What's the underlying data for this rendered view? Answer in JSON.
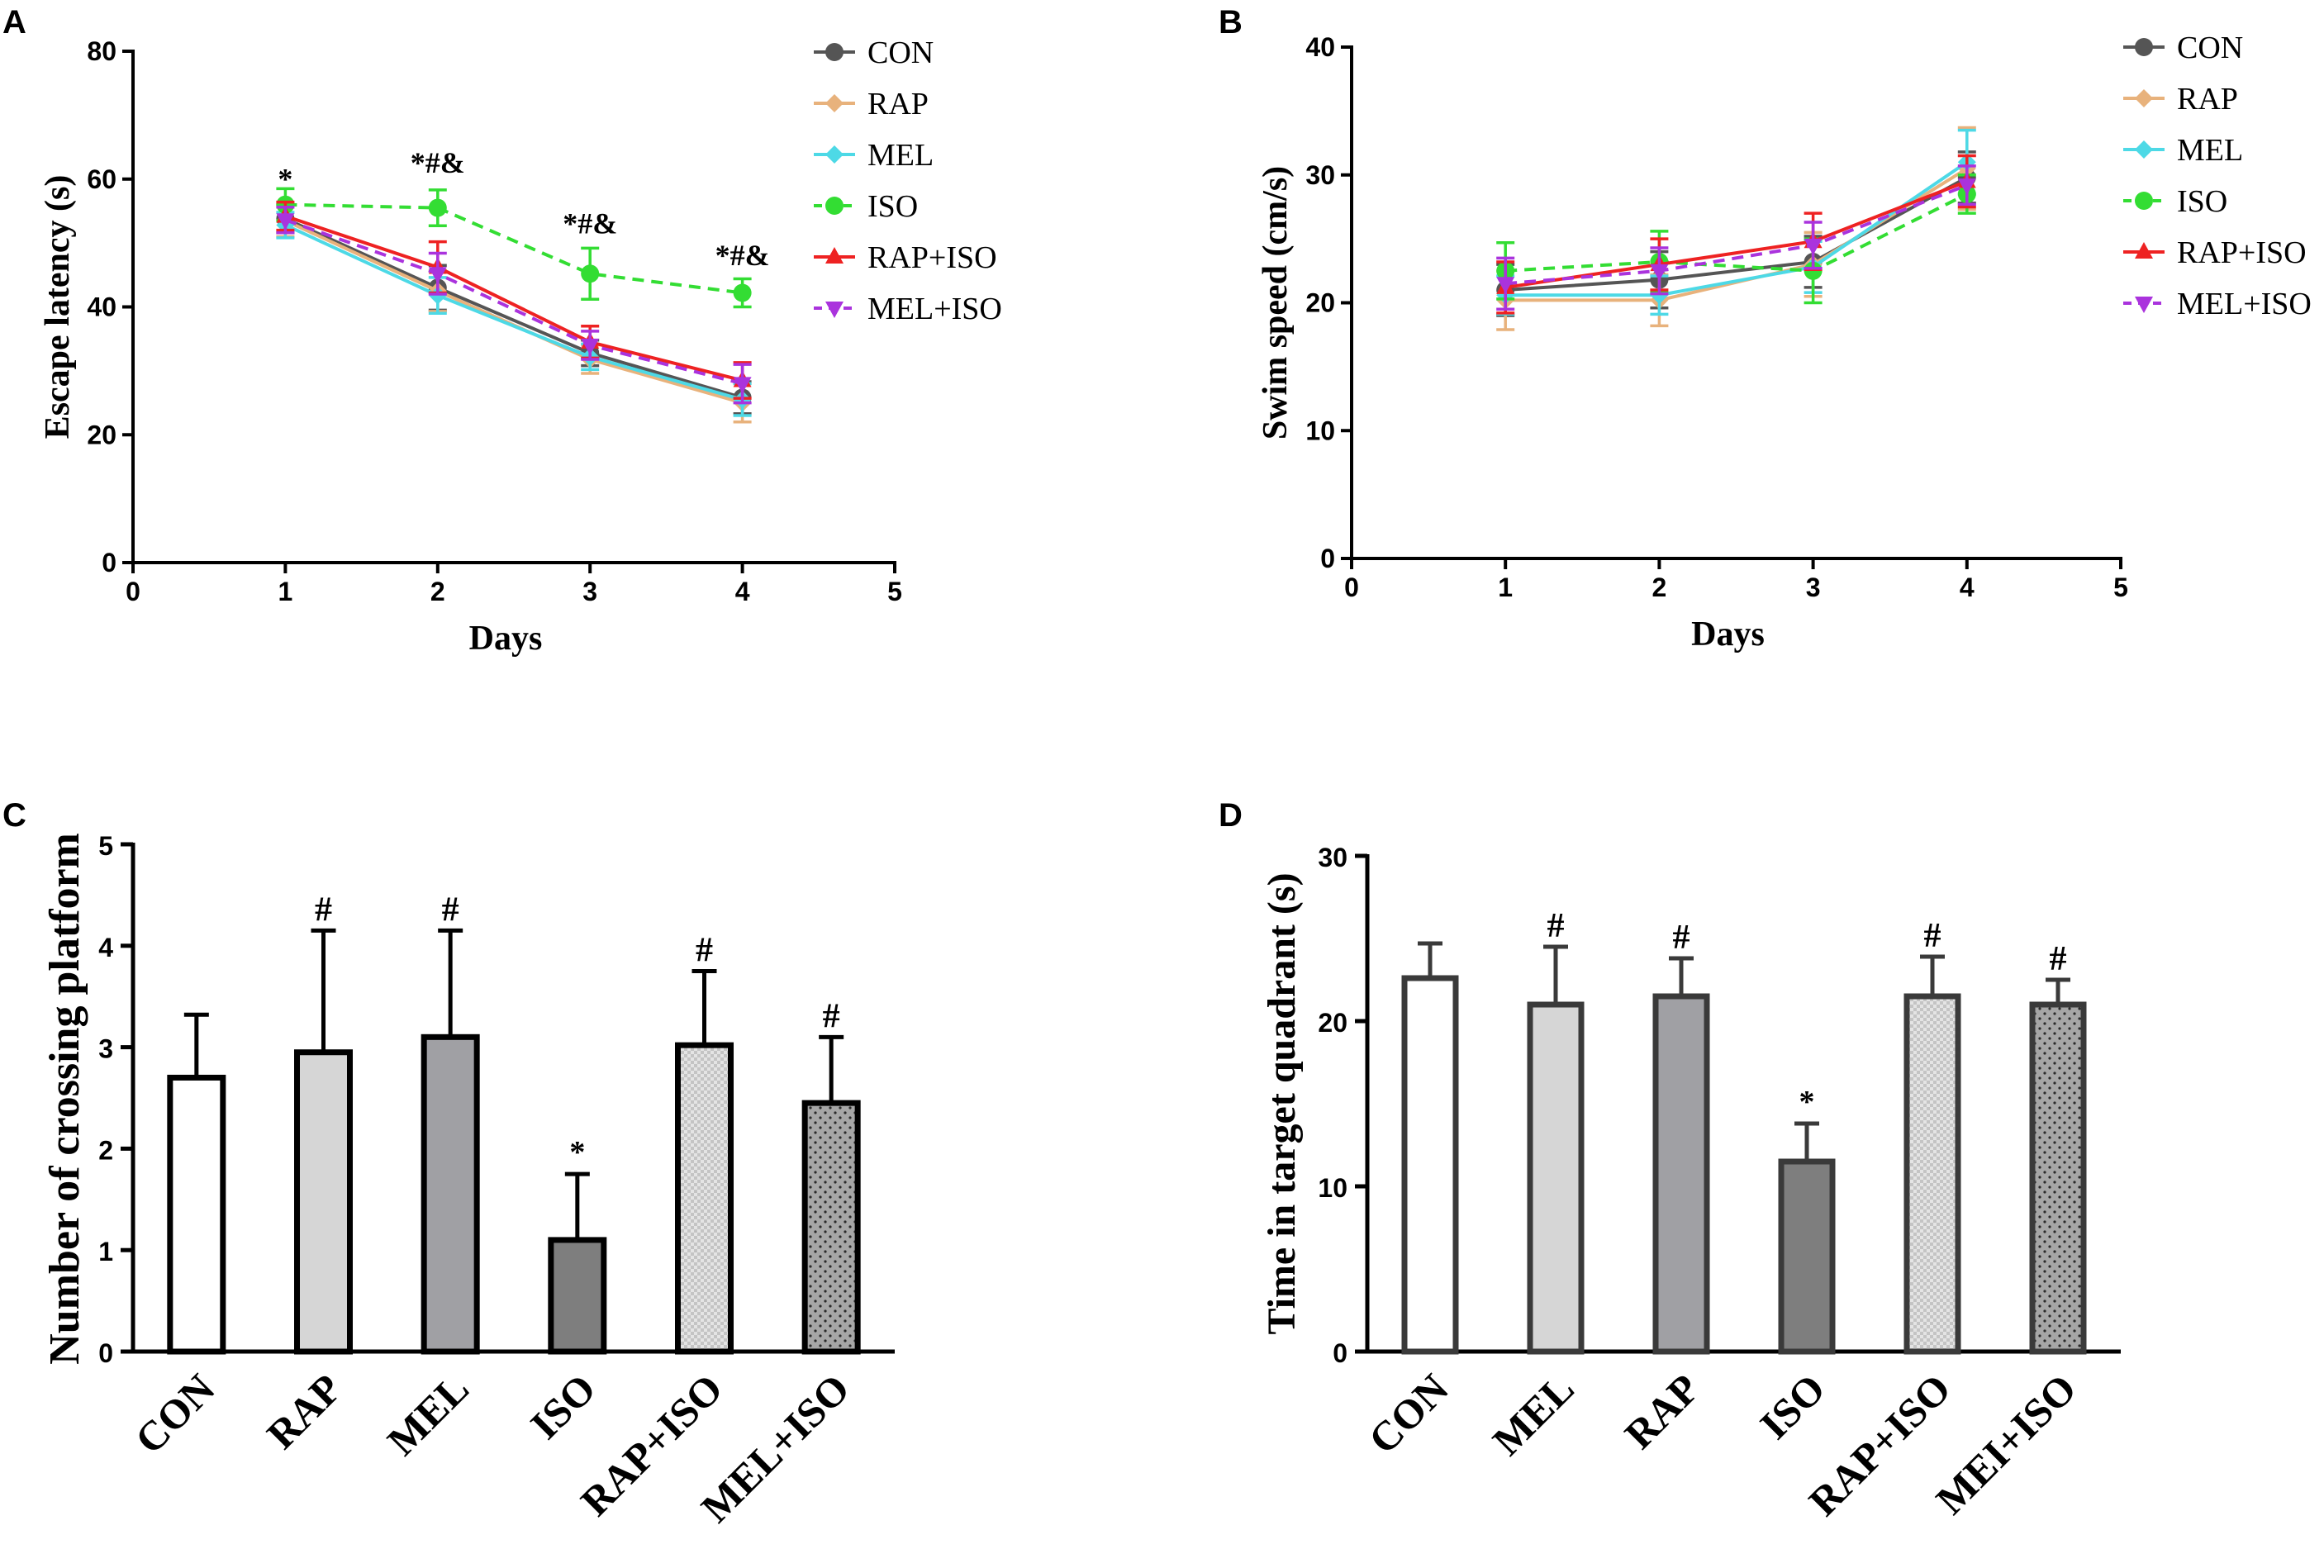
{
  "chart_data": [
    {
      "panel": "A",
      "type": "line",
      "xlabel": "Days",
      "ylabel": "Escape latency (s)",
      "xlim": [
        0,
        5
      ],
      "ylim": [
        0,
        80
      ],
      "xticks": [
        "0",
        "1",
        "2",
        "3",
        "4",
        "5"
      ],
      "yticks": [
        "0",
        "20",
        "40",
        "60",
        "80"
      ],
      "x": [
        1,
        2,
        3,
        4
      ],
      "series": [
        {
          "name": "CON",
          "color": "#555555",
          "marker": "circle",
          "dashed": false,
          "values": [
            53.8,
            43.0,
            32.8,
            25.8
          ],
          "errors": [
            2.2,
            3.5,
            2.0,
            2.5
          ]
        },
        {
          "name": "RAP",
          "color": "#e8b27c",
          "marker": "diamond",
          "dashed": false,
          "values": [
            53.5,
            42.5,
            31.8,
            25.0
          ],
          "errors": [
            2.5,
            3.2,
            2.2,
            3.0
          ]
        },
        {
          "name": "MEL",
          "color": "#4dd9e6",
          "marker": "diamond",
          "dashed": false,
          "values": [
            52.8,
            41.8,
            32.2,
            25.5
          ],
          "errors": [
            2.0,
            2.8,
            2.0,
            2.5
          ]
        },
        {
          "name": "ISO",
          "color": "#33dd33",
          "marker": "circle",
          "dashed": true,
          "values": [
            56.0,
            55.5,
            45.2,
            42.2
          ],
          "errors": [
            2.5,
            2.8,
            4.0,
            2.2
          ]
        },
        {
          "name": "RAP+ISO",
          "color": "#ee2222",
          "marker": "triangle-up",
          "dashed": false,
          "values": [
            54.2,
            46.2,
            34.5,
            28.5
          ],
          "errors": [
            2.2,
            4.0,
            2.5,
            2.8
          ]
        },
        {
          "name": "MEL+ISO",
          "color": "#aa33dd",
          "marker": "triangle-down",
          "dashed": true,
          "values": [
            53.6,
            45.2,
            34.0,
            28.0
          ],
          "errors": [
            2.0,
            3.2,
            2.2,
            3.0
          ]
        }
      ],
      "annotations": [
        {
          "x": 1,
          "y": 58.5,
          "text": "*"
        },
        {
          "x": 2,
          "y": 61.0,
          "text": "*#&"
        },
        {
          "x": 3,
          "y": 51.5,
          "text": "*#&"
        },
        {
          "x": 4,
          "y": 46.5,
          "text": "*#&"
        }
      ]
    },
    {
      "panel": "B",
      "type": "line",
      "xlabel": "Days",
      "ylabel": "Swim speed (cm/s)",
      "xlim": [
        0,
        5
      ],
      "ylim": [
        0,
        40
      ],
      "xticks": [
        "0",
        "1",
        "2",
        "3",
        "4",
        "5"
      ],
      "yticks": [
        "0",
        "10",
        "20",
        "30",
        "40"
      ],
      "x": [
        1,
        2,
        3,
        4
      ],
      "series": [
        {
          "name": "CON",
          "color": "#555555",
          "marker": "circle",
          "dashed": false,
          "values": [
            21.0,
            21.8,
            23.2,
            29.8
          ],
          "errors": [
            2.0,
            2.2,
            2.0,
            2.0
          ]
        },
        {
          "name": "RAP",
          "color": "#e8b27c",
          "marker": "diamond",
          "dashed": false,
          "values": [
            20.2,
            20.2,
            23.0,
            30.5
          ],
          "errors": [
            2.3,
            2.0,
            2.5,
            3.2
          ]
        },
        {
          "name": "MEL",
          "color": "#4dd9e6",
          "marker": "diamond",
          "dashed": false,
          "values": [
            20.6,
            20.6,
            22.8,
            31.0
          ],
          "errors": [
            1.5,
            1.5,
            2.0,
            2.5
          ]
        },
        {
          "name": "ISO",
          "color": "#33dd33",
          "marker": "circle",
          "dashed": true,
          "values": [
            22.5,
            23.2,
            22.5,
            28.5
          ],
          "errors": [
            2.2,
            2.4,
            2.5,
            1.5
          ]
        },
        {
          "name": "RAP+ISO",
          "color": "#ee2222",
          "marker": "triangle-up",
          "dashed": false,
          "values": [
            21.2,
            23.0,
            24.8,
            29.5
          ],
          "errors": [
            2.0,
            2.0,
            2.2,
            2.0
          ]
        },
        {
          "name": "MEL+ISO",
          "color": "#aa33dd",
          "marker": "triangle-down",
          "dashed": true,
          "values": [
            21.5,
            22.5,
            24.5,
            29.2
          ],
          "errors": [
            2.0,
            1.8,
            1.8,
            1.5
          ]
        }
      ]
    },
    {
      "panel": "C",
      "type": "bar",
      "ylabel": "Number of crossing platform",
      "ylim": [
        0,
        5
      ],
      "yticks": [
        "0",
        "1",
        "2",
        "3",
        "4",
        "5"
      ],
      "categories": [
        "CON",
        "RAP",
        "MEL",
        "ISO",
        "RAP+ISO",
        "MEL+ISO"
      ],
      "values": [
        2.7,
        2.95,
        3.1,
        1.1,
        3.02,
        2.45
      ],
      "errors": [
        0.62,
        1.2,
        1.05,
        0.65,
        0.73,
        0.65
      ],
      "fills": [
        "white",
        "light",
        "medium",
        "dark",
        "check",
        "dots"
      ],
      "annotations": [
        "",
        "#",
        "#",
        "*",
        "#",
        "#"
      ]
    },
    {
      "panel": "D",
      "type": "bar",
      "ylabel": "Time in target quadrant (s)",
      "ylim": [
        0,
        30
      ],
      "yticks": [
        "0",
        "10",
        "20",
        "30"
      ],
      "categories": [
        "CON",
        "MEL",
        "RAP",
        "ISO",
        "RAP+ISO",
        "MEI+ISO"
      ],
      "values": [
        22.6,
        21.0,
        21.5,
        11.5,
        21.5,
        21.0
      ],
      "errors": [
        2.1,
        3.5,
        2.3,
        2.3,
        2.4,
        1.5
      ],
      "fills": [
        "white",
        "light",
        "medium",
        "dark",
        "check",
        "dots"
      ],
      "annotations": [
        "",
        "#",
        "#",
        "*",
        "#",
        "#"
      ]
    }
  ]
}
